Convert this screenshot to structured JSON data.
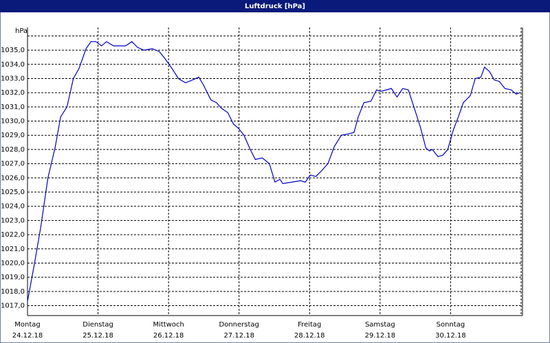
{
  "chart_data": {
    "type": "line",
    "title": "Luftdruck [hPa]",
    "ylabel": "hPa",
    "x": [
      0,
      0.1,
      0.19,
      0.29,
      0.39,
      0.47,
      0.56,
      0.65,
      0.73,
      0.83,
      0.9,
      0.97,
      1.05,
      1.12,
      1.22,
      1.31,
      1.39,
      1.48,
      1.56,
      1.65,
      1.77,
      1.87,
      1.95,
      2.05,
      2.14,
      2.24,
      2.34,
      2.43,
      2.5,
      2.6,
      2.68,
      2.75,
      2.84,
      2.92,
      2.99,
      3.07,
      3.15,
      3.23,
      3.33,
      3.43,
      3.51,
      3.58,
      3.62,
      3.75,
      3.87,
      3.94,
      4.01,
      4.09,
      4.17,
      4.26,
      4.35,
      4.45,
      4.55,
      4.63,
      4.69,
      4.77,
      4.87,
      4.95,
      5.01,
      5.09,
      5.16,
      5.24,
      5.32,
      5.4,
      5.48,
      5.57,
      5.65,
      5.7,
      5.74,
      5.82,
      5.89,
      5.96,
      6.04,
      6.11,
      6.18,
      6.28,
      6.35,
      6.43,
      6.48,
      6.55,
      6.62,
      6.69,
      6.77,
      6.86,
      6.93,
      6.98
    ],
    "values": [
      1017.3,
      1020.0,
      1022.6,
      1026.0,
      1028.1,
      1030.3,
      1031.0,
      1033.0,
      1033.7,
      1035.1,
      1035.6,
      1035.6,
      1035.3,
      1035.6,
      1035.3,
      1035.3,
      1035.3,
      1035.6,
      1035.2,
      1035.0,
      1035.1,
      1034.9,
      1034.4,
      1033.7,
      1033.0,
      1032.7,
      1032.9,
      1033.1,
      1032.5,
      1031.5,
      1031.3,
      1030.9,
      1030.6,
      1029.8,
      1029.5,
      1029.0,
      1028.1,
      1027.3,
      1027.4,
      1027.0,
      1025.7,
      1025.9,
      1025.6,
      1025.7,
      1025.8,
      1025.7,
      1026.2,
      1026.1,
      1026.5,
      1027.0,
      1028.2,
      1029.0,
      1029.1,
      1029.2,
      1030.3,
      1031.3,
      1031.4,
      1032.2,
      1032.1,
      1032.2,
      1032.3,
      1031.7,
      1032.3,
      1032.2,
      1031.0,
      1029.6,
      1028.1,
      1027.9,
      1028.0,
      1027.5,
      1027.6,
      1028.0,
      1029.4,
      1030.3,
      1031.3,
      1031.8,
      1033.0,
      1033.1,
      1033.8,
      1033.5,
      1032.9,
      1032.8,
      1032.3,
      1032.2,
      1031.9,
      1032.0
    ],
    "color": "#0000c0",
    "xlim": [
      0,
      7
    ],
    "xticks": [
      {
        "value": 0,
        "label": "Montag",
        "date": "24.12.18"
      },
      {
        "value": 1,
        "label": "Dienstag",
        "date": "25.12.18"
      },
      {
        "value": 2,
        "label": "Mittwoch",
        "date": "26.12.18"
      },
      {
        "value": 3,
        "label": "Donnerstag",
        "date": "27.12.18"
      },
      {
        "value": 4,
        "label": "Freitag",
        "date": "28.12.18"
      },
      {
        "value": 5,
        "label": "Samstag",
        "date": "29.12.18"
      },
      {
        "value": 6,
        "label": "Sonntag",
        "date": "30.12.18"
      },
      7
    ],
    "ylim": [
      1016.3,
      1036.6
    ],
    "yticks": [
      {
        "value": 1017,
        "label": "1017,0"
      },
      {
        "value": 1018,
        "label": "1018,0"
      },
      {
        "value": 1019,
        "label": "1019,0"
      },
      {
        "value": 1020,
        "label": "1020,0"
      },
      {
        "value": 1021,
        "label": "1021,0"
      },
      {
        "value": 1022,
        "label": "1022,0"
      },
      {
        "value": 1023,
        "label": "1023,0"
      },
      {
        "value": 1024,
        "label": "1024,0"
      },
      {
        "value": 1025,
        "label": "1025,0"
      },
      {
        "value": 1026,
        "label": "1026,0"
      },
      {
        "value": 1027,
        "label": "1027,0"
      },
      {
        "value": 1028,
        "label": "1028,0"
      },
      {
        "value": 1029,
        "label": "1029,0"
      },
      {
        "value": 1030,
        "label": "1030,0"
      },
      {
        "value": 1031,
        "label": "1031,0"
      },
      {
        "value": 1032,
        "label": "1032,0"
      },
      {
        "value": 1033,
        "label": "1033,0"
      },
      {
        "value": 1034,
        "label": "1034,0"
      },
      {
        "value": 1035,
        "label": "1035,0"
      },
      1036
    ],
    "grid": true
  }
}
